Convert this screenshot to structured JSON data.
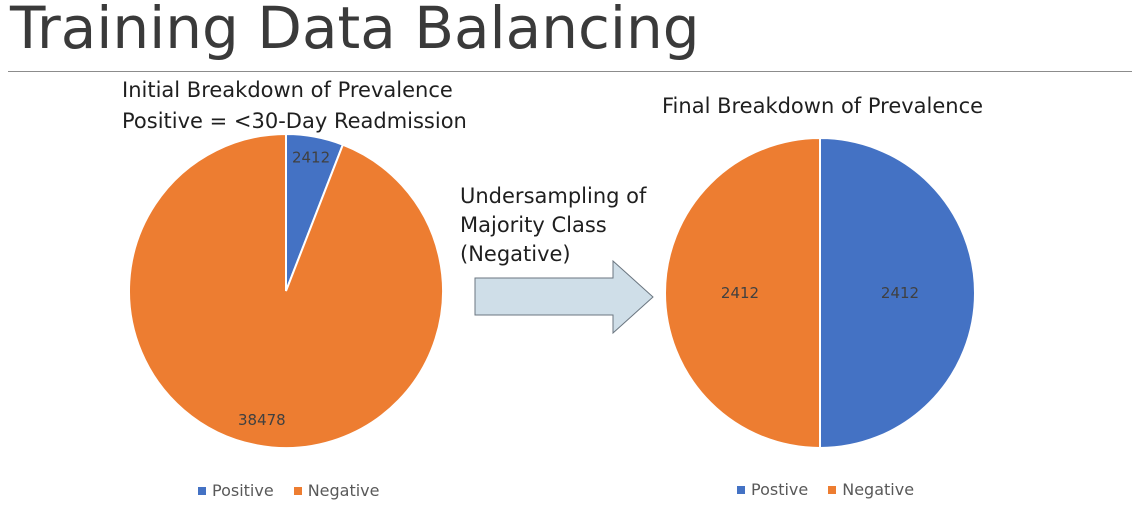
{
  "slide": {
    "title": "Training Data Balancing"
  },
  "annotation": {
    "lines": [
      "Undersampling of",
      "Majority Class",
      "(Negative)"
    ]
  },
  "colors": {
    "positive": "#4472C4",
    "negative": "#ED7D31",
    "arrow_fill": "#CFDEE8",
    "arrow_stroke": "#6B7680"
  },
  "chart_data": [
    {
      "type": "pie",
      "title_lines": [
        "Initial Breakdown of Prevalence",
        "Positive = <30-Day Readmission"
      ],
      "categories": [
        "Positive",
        "Negative"
      ],
      "values": [
        2412,
        38478
      ],
      "data_labels": [
        "2412",
        "38478"
      ],
      "legend": [
        "Positive",
        "Negative"
      ],
      "legend_position": "bottom"
    },
    {
      "type": "pie",
      "title_lines": [
        "Final Breakdown of Prevalence"
      ],
      "categories": [
        "Positive",
        "Negative"
      ],
      "values": [
        2412,
        2412
      ],
      "data_labels": [
        "2412",
        "2412"
      ],
      "legend": [
        "Postive",
        "Negative"
      ],
      "legend_position": "bottom"
    }
  ]
}
